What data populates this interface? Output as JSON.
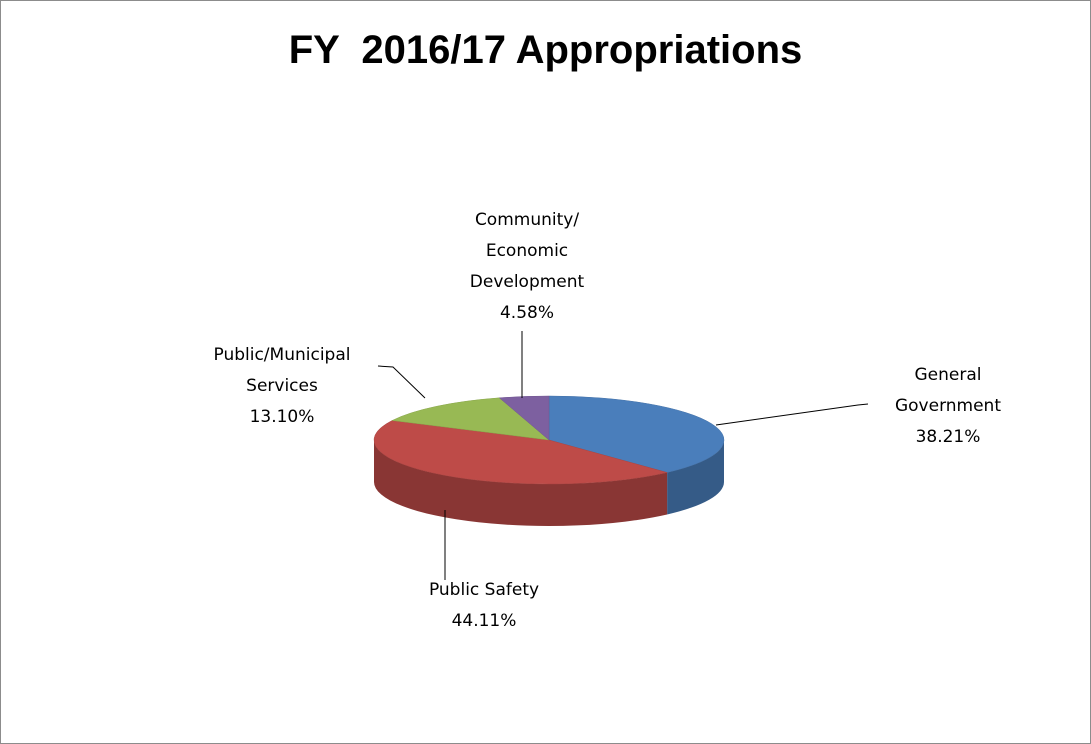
{
  "chart_data": {
    "type": "pie3d",
    "title": "FY  2016/17 Appropriations",
    "categories": [
      "General\nGovernment",
      "Public Safety",
      "Public/Municipal\nServices",
      "Community/\nEconomic\nDevelopment"
    ],
    "values": [
      38.21,
      44.11,
      13.1,
      4.58
    ],
    "value_labels": [
      "38.21%",
      "44.11%",
      "13.10%",
      "4.58%"
    ],
    "colors": [
      "#4a7ebb",
      "#be4b48",
      "#98b954",
      "#7d60a0"
    ]
  }
}
